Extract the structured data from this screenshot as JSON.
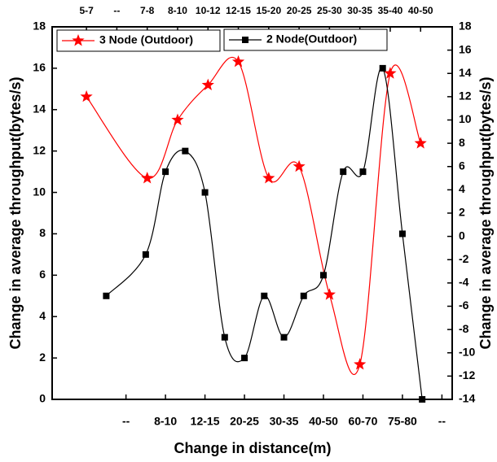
{
  "chart_data": {
    "type": "line",
    "xlabel": "Change in distance(m)",
    "ylabel": "Change in average throughput(bytes/s)",
    "y2label": "Change in average throughput(bytes/s)",
    "xlim": [
      -0.87,
      9.26
    ],
    "xticks": [
      {
        "value": 1,
        "label": "--"
      },
      {
        "value": 2,
        "label": "8-10"
      },
      {
        "value": 3,
        "label": "12-15"
      },
      {
        "value": 4,
        "label": "20-25"
      },
      {
        "value": 5,
        "label": "30-35"
      },
      {
        "value": 6,
        "label": "40-50"
      },
      {
        "value": 7,
        "label": "60-70"
      },
      {
        "value": 8,
        "label": "75-80"
      },
      {
        "value": 9,
        "label": "--"
      }
    ],
    "x2lim": [
      -1.13,
      12.04
    ],
    "x2ticks": [
      {
        "value": 0,
        "label": "5-7"
      },
      {
        "value": 1,
        "label": "--"
      },
      {
        "value": 2,
        "label": "7-8"
      },
      {
        "value": 3,
        "label": "8-10"
      },
      {
        "value": 4,
        "label": "10-12"
      },
      {
        "value": 5,
        "label": "12-15"
      },
      {
        "value": 6,
        "label": "15-20"
      },
      {
        "value": 7,
        "label": "20-25"
      },
      {
        "value": 8,
        "label": "25-30"
      },
      {
        "value": 9,
        "label": "30-35"
      },
      {
        "value": 10,
        "label": "35-40"
      },
      {
        "value": 11,
        "label": "40-50"
      }
    ],
    "ylim": [
      0,
      18
    ],
    "yticks": [
      0,
      2,
      4,
      6,
      8,
      10,
      12,
      14,
      16,
      18
    ],
    "y2lim": [
      -14,
      18
    ],
    "y2ticks": [
      -14,
      -12,
      -10,
      -8,
      -6,
      -4,
      -2,
      0,
      2,
      4,
      6,
      8,
      10,
      12,
      14,
      16,
      18
    ],
    "series": [
      {
        "name": "3 Node (Outdoor)",
        "color": "#ff0000",
        "marker": "star",
        "axis": "y2",
        "xaxis": "x2",
        "x": [
          0,
          2,
          3,
          4,
          5,
          6,
          7,
          8,
          9,
          10,
          11
        ],
        "values": [
          12,
          5,
          10,
          13,
          15,
          5,
          6,
          -5,
          -11,
          14,
          8
        ]
      },
      {
        "name": "2 Node(Outdoor)",
        "color": "#000000",
        "marker": "square",
        "x": [
          0.5,
          1.5,
          2,
          2.5,
          3,
          3.5,
          4,
          4.5,
          5,
          5.5,
          6,
          6.5,
          7,
          7.5,
          8,
          8.5
        ],
        "values": [
          5,
          7,
          11,
          12,
          10,
          3,
          2,
          5,
          3,
          5,
          6,
          11,
          11,
          16,
          8,
          0
        ]
      }
    ]
  }
}
